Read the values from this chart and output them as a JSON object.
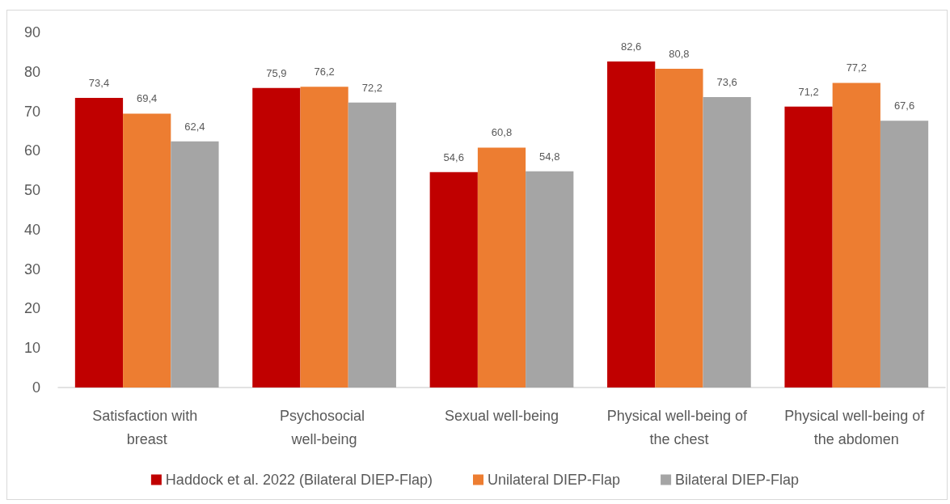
{
  "chart_data": {
    "type": "bar",
    "categories": [
      "Satisfaction with breast",
      "Psychosocial well-being",
      "Sexual well-being",
      "Physical well-being of the chest",
      "Physical well-being of the abdomen"
    ],
    "series": [
      {
        "name": "Haddock et al. 2022 (Bilateral DIEP-Flap)",
        "color": "#c00000",
        "values": [
          73.4,
          75.9,
          54.6,
          82.6,
          71.2
        ],
        "value_labels": [
          "73,4",
          "75,9",
          "54,6",
          "82,6",
          "71,2"
        ]
      },
      {
        "name": "Unilateral DIEP-Flap",
        "color": "#ed7d31",
        "values": [
          69.4,
          76.2,
          60.8,
          80.8,
          77.2
        ],
        "value_labels": [
          "69,4",
          "76,2",
          "60,8",
          "80,8",
          "77,2"
        ]
      },
      {
        "name": "Bilateral DIEP-Flap",
        "color": "#a5a5a5",
        "values": [
          62.4,
          72.2,
          54.8,
          73.6,
          67.6
        ],
        "value_labels": [
          "62,4",
          "72,2",
          "54,8",
          "73,6",
          "67,6"
        ]
      }
    ],
    "ylim": [
      0,
      90
    ],
    "yticks": [
      0,
      10,
      20,
      30,
      40,
      50,
      60,
      70,
      80,
      90
    ],
    "grid": false,
    "legend": "bottom"
  }
}
